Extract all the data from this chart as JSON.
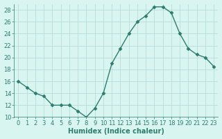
{
  "x": [
    0,
    1,
    2,
    3,
    4,
    5,
    6,
    7,
    8,
    9,
    10,
    11,
    12,
    13,
    14,
    15,
    16,
    17,
    18,
    19,
    20,
    21,
    22,
    23
  ],
  "y": [
    16,
    15,
    14,
    13.5,
    12,
    12,
    12,
    11,
    10,
    11.5,
    14,
    19,
    21.5,
    24,
    26,
    27,
    28.5,
    28.5,
    27.5,
    24,
    21.5,
    20.5,
    20,
    18.5
  ],
  "line_color": "#2d7d6e",
  "marker": "D",
  "markersize": 2.5,
  "linewidth": 1.0,
  "bg_color": "#d8f5f0",
  "grid_color": "#b8ddd8",
  "xlabel": "Humidex (Indice chaleur)",
  "xlabel_fontsize": 7,
  "tick_fontsize": 6,
  "ylim": [
    10,
    29
  ],
  "xlim": [
    -0.5,
    23.5
  ],
  "yticks": [
    10,
    12,
    14,
    16,
    18,
    20,
    22,
    24,
    26,
    28
  ],
  "xticks": [
    0,
    1,
    2,
    3,
    4,
    5,
    6,
    7,
    8,
    9,
    10,
    11,
    12,
    13,
    14,
    15,
    16,
    17,
    18,
    19,
    20,
    21,
    22,
    23
  ]
}
